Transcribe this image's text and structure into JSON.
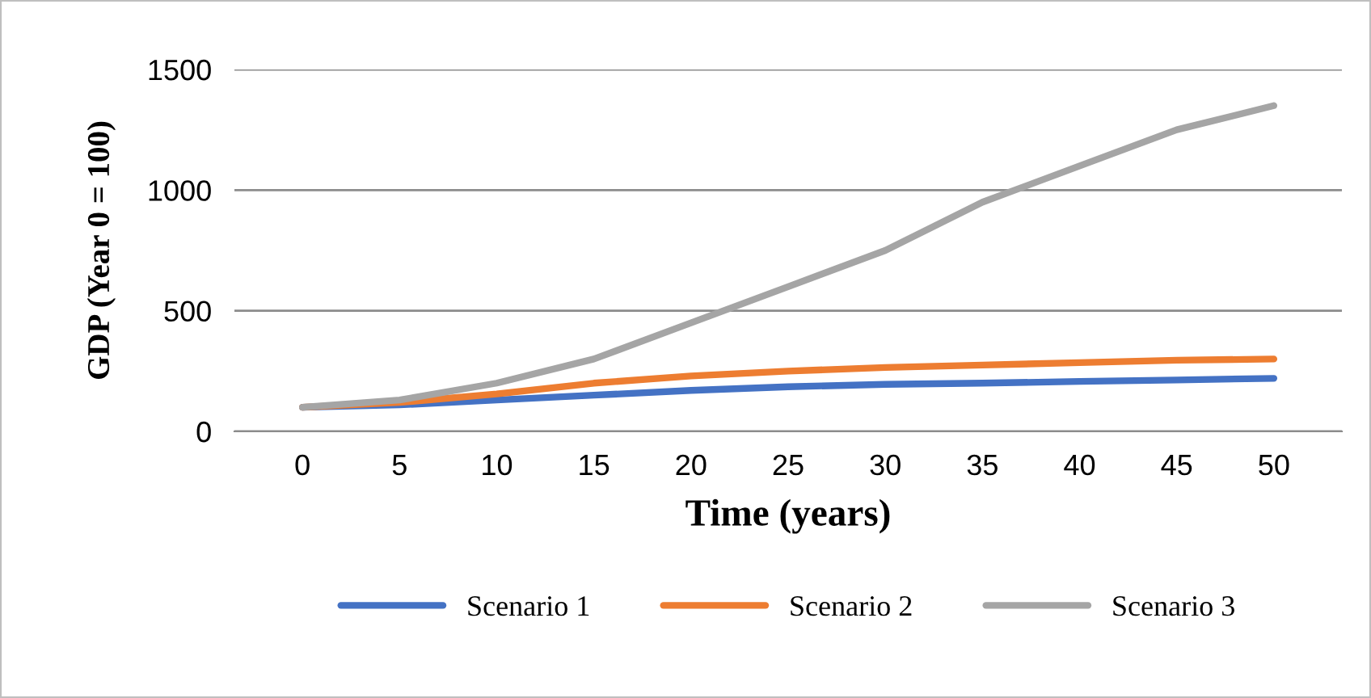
{
  "chart_data": {
    "type": "line",
    "xlabel": "Time (years)",
    "ylabel": "GDP (Year 0 = 100)",
    "categories": [
      "0",
      "5",
      "10",
      "15",
      "20",
      "25",
      "30",
      "35",
      "40",
      "45",
      "50"
    ],
    "ylim": [
      0,
      1500
    ],
    "yticks": [
      0,
      500,
      1000,
      1500
    ],
    "grid": "y",
    "legend": "bottom",
    "marker": "none",
    "line_style": "solid",
    "series": [
      {
        "name": "Scenario 1",
        "color": "#4472c4",
        "values": [
          100,
          110,
          130,
          150,
          170,
          185,
          195,
          200,
          207,
          213,
          220
        ]
      },
      {
        "name": "Scenario 2",
        "color": "#ed7d31",
        "values": [
          100,
          120,
          155,
          200,
          230,
          250,
          265,
          275,
          285,
          295,
          300
        ]
      },
      {
        "name": "Scenario 3",
        "color": "#a5a5a5",
        "values": [
          100,
          130,
          200,
          300,
          450,
          600,
          750,
          950,
          1100,
          1250,
          1350
        ]
      }
    ]
  }
}
